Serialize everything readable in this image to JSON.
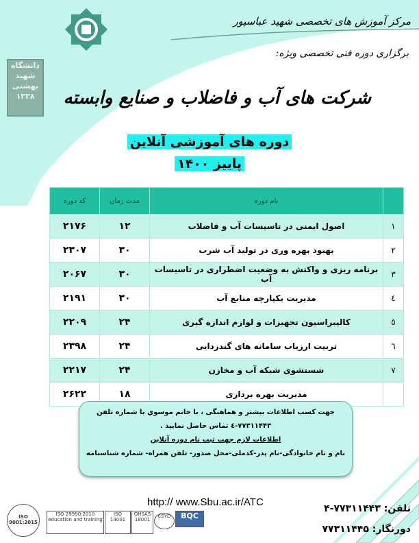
{
  "header": {
    "center_name": "مرکز آموزش های تخصصی شهید عباسپور",
    "subtitle": "برگزاری دوره فنی تخصصی ویژه:",
    "title": "شرکت های آب و فاضلاب و صنایع وابسته",
    "banner_line1": "دوره های آموزشی آنلاین",
    "banner_line2": "پاییز ۱۴۰۰",
    "university_seal_text": "دانشگاه شهید بهشتی ۱۳۳۸"
  },
  "colors": {
    "mint": "#c4f4e9",
    "teal_header": "#1fbfa0",
    "highlight": "#22f0f0"
  },
  "table": {
    "headers": {
      "number": "",
      "name": "نام دوره",
      "duration": "مدت زمان",
      "code": "کد دوره"
    },
    "rows": [
      {
        "number": "۱",
        "name": "اصول ایمنی در تاسیسات آب و فاضلاب",
        "duration": "۱۲",
        "code": "۲۱۷۶"
      },
      {
        "number": "۲",
        "name": "بهبود بهره وری در تولید آب شرب",
        "duration": "۳۰",
        "code": "۲۳۰۷"
      },
      {
        "number": "۳",
        "name": "برنامه ریزی و واکنش به وضعیت اضطراری در تاسیسات آب",
        "duration": "۳۰",
        "code": "۲۰۶۷"
      },
      {
        "number": "٤",
        "name": "مدیریت یکپارچه منابع آب",
        "duration": "۳۰",
        "code": "۲۱۹۱"
      },
      {
        "number": "٥",
        "name": "کالیبراسیون تجهیزات و لوازم اندازه گیری",
        "duration": "۲۴",
        "code": "۲۲۰۹"
      },
      {
        "number": "٦",
        "name": "تربیت ارزیاب سامانه های گندزدایی",
        "duration": "۲۴",
        "code": "۲۳۹۸"
      },
      {
        "number": "۷",
        "name": "شستشوی شبکه آب و مخازن",
        "duration": "۲۴",
        "code": "۲۲۱۷"
      },
      {
        "number": "",
        "name": "مدیریت بهره برداری",
        "duration": "۱۸",
        "code": "۲۶۲۲"
      }
    ]
  },
  "info": {
    "line1": "جهت کسب اطلاعات بیشتر و هماهنگی ، با خانم موسوي  با شماره تلفن",
    "line2": "۷۷۳۱۱۴۴۳-٤ تماس حاصل نمایید .",
    "line3": "اطلاعات لازم جهت ثبت نام دوره آنلاین",
    "line4": "نام و نام خانوادگی-نام پدر-کدملی-محل صدور- تلفن همراه- شماره شناسنامه"
  },
  "footer": {
    "url": "http:// www.Sbu.ac.ir/ATC",
    "phone_label": "تلفن:",
    "phone": "۷۷۳۱۱۴۴۳-۴",
    "fax_label": "دورنگار:",
    "fax": "۷۷۳۱۱۴۴۵",
    "logos": [
      "ISO 9001:2015",
      "ISO 29990:2010 education and training",
      "ISO 14001",
      "OHSAS 18001",
      "ESYD",
      "BQC"
    ]
  }
}
